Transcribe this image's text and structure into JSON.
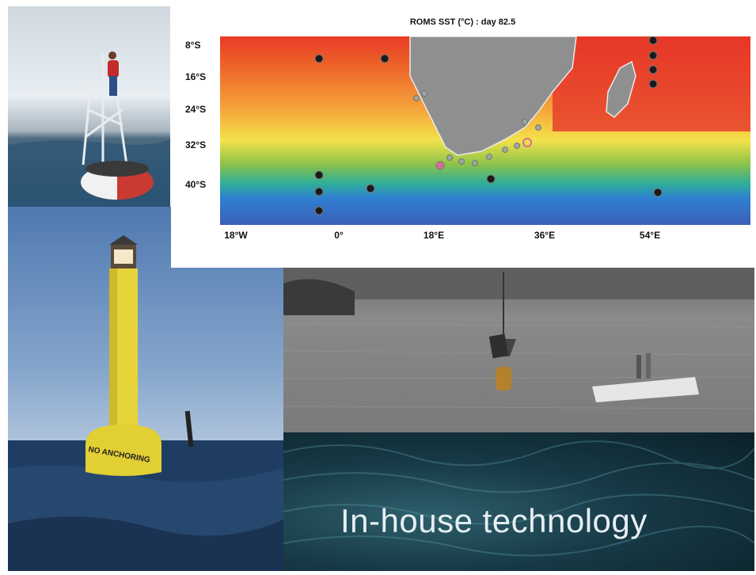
{
  "map": {
    "title": "ROMS SST (°C) : day 82.5",
    "y_ticks": [
      "8°S",
      "16°S",
      "24°S",
      "32°S",
      "40°S"
    ],
    "x_ticks": [
      "18°W",
      "0°",
      "18°E",
      "36°E",
      "54°E"
    ]
  },
  "photos": {
    "spar_buoy_text": "NO ANCHORING",
    "caption": "In-house technology"
  }
}
